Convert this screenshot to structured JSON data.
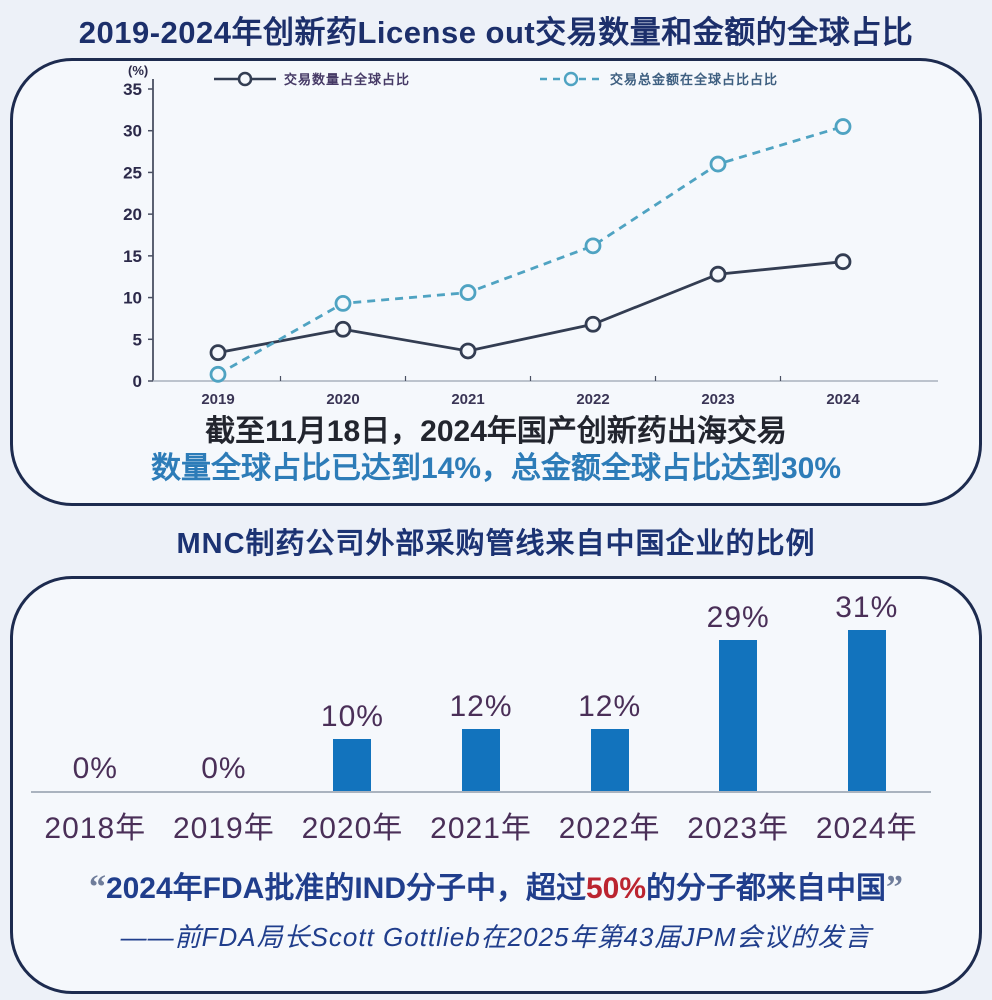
{
  "page": {
    "background": "#edf1f8",
    "panel_border": "#1d2b4f"
  },
  "top_chart": {
    "title": "2019-2024年创新药License out交易数量和金额的全球占比",
    "caption_line1": "截至11月18日，2024年国产创新药出海交易",
    "caption_line2": "数量全球占比已达到14%，总金额全球占比达到30%"
  },
  "bottom_chart": {
    "title": "MNC制药公司外部采购管线来自中国企业的比例",
    "quote": {
      "open_mark": "“",
      "part1": "2024年FDA批准的IND分子中，超过",
      "highlight": "50%",
      "part2": "的分子都来自中国",
      "close_mark": "”",
      "attribution": "——前FDA局长Scott Gottlieb在2025年第43届JPM会议的发言"
    }
  },
  "chart_data": [
    {
      "type": "line",
      "title": "2019-2024年创新药License out交易数量和金额的全球占比",
      "categories": [
        "2019",
        "2020",
        "2021",
        "2022",
        "2023",
        "2024"
      ],
      "series": [
        {
          "name": "交易数量占全球占比",
          "style": "solid",
          "color": "#333d52",
          "values": [
            3.4,
            6.2,
            3.6,
            6.8,
            12.8,
            14.3
          ]
        },
        {
          "name": "交易总金额在全球占比占比",
          "style": "dashed",
          "color": "#4fa3c2",
          "values": [
            0.8,
            9.3,
            10.6,
            16.2,
            26.0,
            30.5
          ]
        }
      ],
      "xlabel": "",
      "ylabel": "(%)",
      "ylim": [
        0,
        35
      ],
      "yticks": [
        0,
        5,
        10,
        15,
        20,
        25,
        30,
        35
      ],
      "grid": false,
      "legend_position": "top"
    },
    {
      "type": "bar",
      "title": "MNC制药公司外部采购管线来自中国企业的比例",
      "categories": [
        "2018年",
        "2019年",
        "2020年",
        "2021年",
        "2022年",
        "2023年",
        "2024年"
      ],
      "values": [
        0,
        0,
        10,
        12,
        12,
        29,
        31
      ],
      "labels": [
        "0%",
        "0%",
        "10%",
        "12%",
        "12%",
        "29%",
        "31%"
      ],
      "bar_color": "#1273bd",
      "label_color": "#4a2f58",
      "xlabel": "",
      "ylabel": "",
      "ylim": [
        0,
        35
      ],
      "grid": false
    }
  ]
}
